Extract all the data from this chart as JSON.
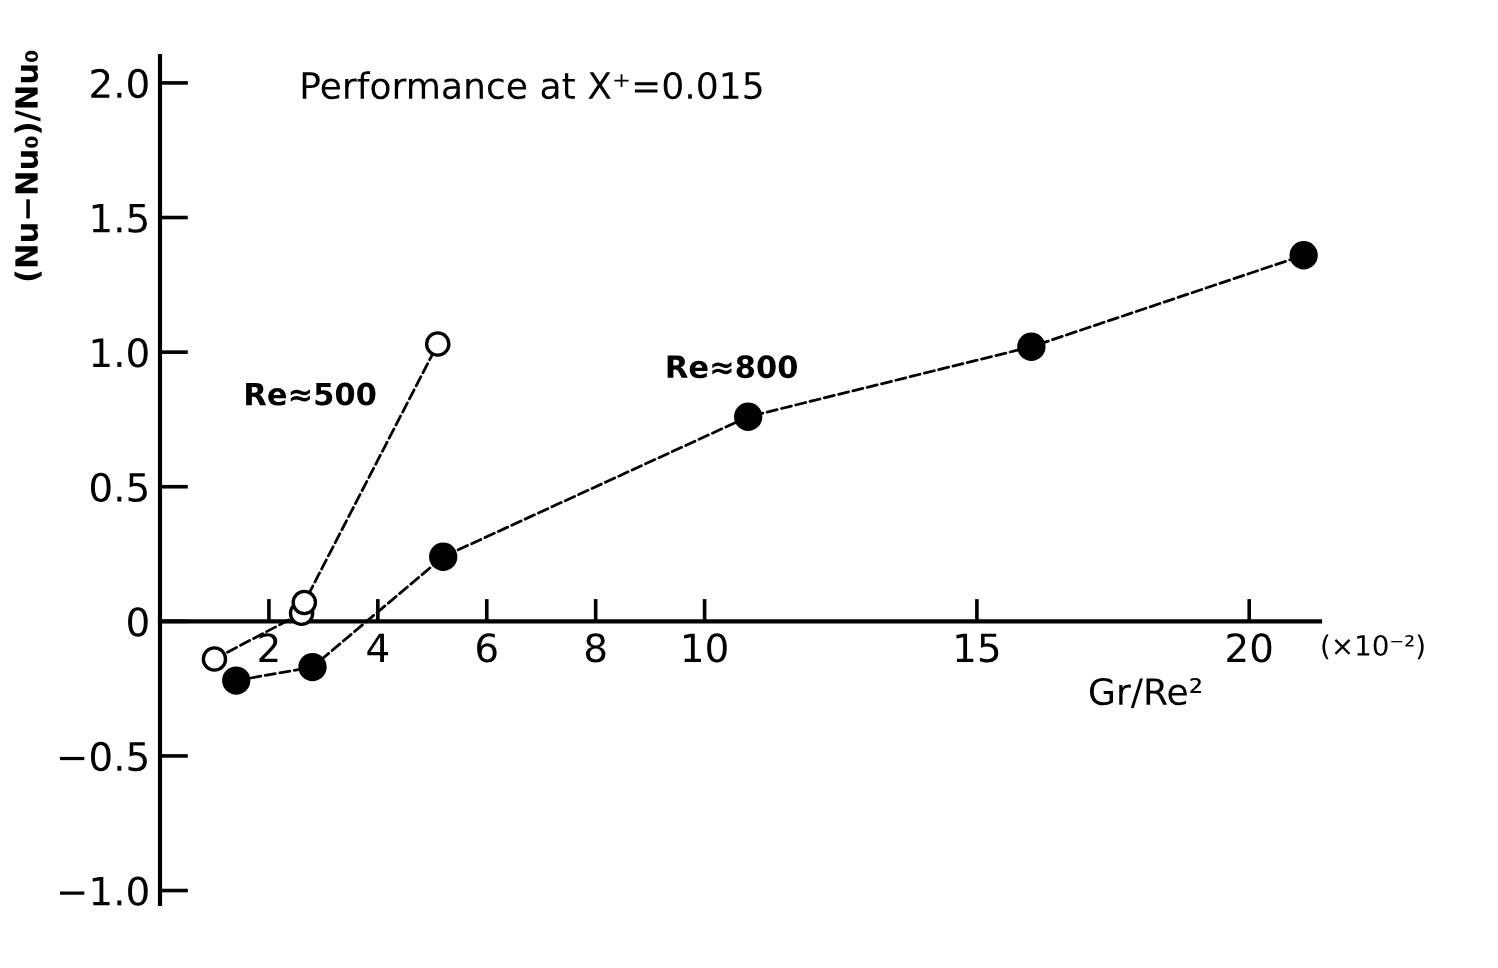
{
  "chart_data": {
    "type": "line",
    "title": "Performance at X⁺=0.015",
    "xlabel": "Gr/Re²",
    "ylabel": "(Nu−Nu₀)/Nu₀",
    "annotations": [
      "(×10⁻²)"
    ],
    "series": [
      {
        "name": "Re≈500",
        "color": "#ffffff",
        "x": [
          1.0,
          2.6,
          2.65,
          5.1
        ],
        "values": [
          -0.14,
          0.03,
          0.07,
          1.03
        ]
      },
      {
        "name": "Re≈800",
        "color": "#000000",
        "x": [
          1.4,
          2.8,
          5.2,
          10.8,
          16.0,
          21.0
        ],
        "values": [
          -0.22,
          -0.17,
          0.24,
          0.76,
          1.02,
          1.36
        ]
      }
    ],
    "xlim": [
      0,
      21.3
    ],
    "ylim": [
      -1.05,
      2.1
    ],
    "xticks": [
      2,
      4,
      6,
      8,
      10,
      15,
      20
    ],
    "yticks": [
      {
        "value": -1.0,
        "label": "−1.0"
      },
      {
        "value": -0.5,
        "label": "−0.5"
      },
      0,
      0.5,
      {
        "value": 1,
        "label": "1.0"
      },
      1.5,
      {
        "value": 2,
        "label": "2.0"
      }
    ],
    "grid": false,
    "legend": false,
    "marker": "circle",
    "line_style": "dashed"
  }
}
